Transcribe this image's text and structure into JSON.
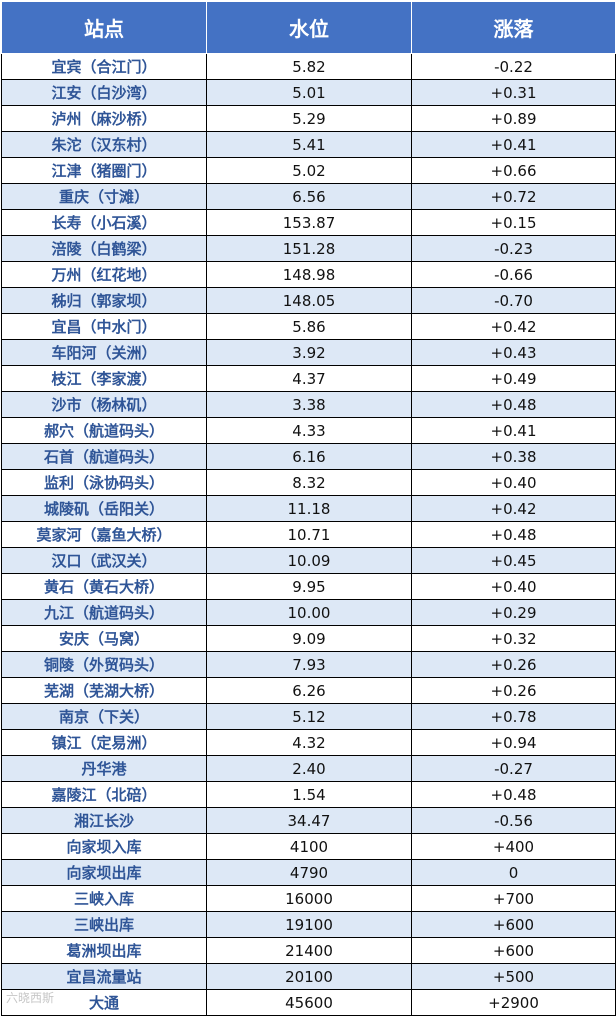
{
  "table": {
    "headers": [
      "站点",
      "水位",
      "涨落"
    ],
    "rows": [
      [
        "宜宾（合江门）",
        "5.82",
        "-0.22"
      ],
      [
        "江安（白沙湾）",
        "5.01",
        "+0.31"
      ],
      [
        "泸州（麻沙桥）",
        "5.29",
        "+0.89"
      ],
      [
        "朱沱（汉东村）",
        "5.41",
        "+0.41"
      ],
      [
        "江津（猪圈门）",
        "5.02",
        "+0.66"
      ],
      [
        "重庆（寸滩）",
        "6.56",
        "+0.72"
      ],
      [
        "长寿（小石溪）",
        "153.87",
        "+0.15"
      ],
      [
        "涪陵（白鹤梁）",
        "151.28",
        "-0.23"
      ],
      [
        "万州（红花地）",
        "148.98",
        "-0.66"
      ],
      [
        "秭归（郭家坝）",
        "148.05",
        "-0.70"
      ],
      [
        "宜昌（中水门）",
        "5.86",
        "+0.42"
      ],
      [
        "车阳河（关洲）",
        "3.92",
        "+0.43"
      ],
      [
        "枝江（李家渡）",
        "4.37",
        "+0.49"
      ],
      [
        "沙市（杨林矶）",
        "3.38",
        "+0.48"
      ],
      [
        "郝穴（航道码头）",
        "4.33",
        "+0.41"
      ],
      [
        "石首（航道码头）",
        "6.16",
        "+0.38"
      ],
      [
        "监利（泳协码头）",
        "8.32",
        "+0.40"
      ],
      [
        "城陵矶（岳阳关）",
        "11.18",
        "+0.42"
      ],
      [
        "莫家河（嘉鱼大桥）",
        "10.71",
        "+0.48"
      ],
      [
        "汉口（武汉关）",
        "10.09",
        "+0.45"
      ],
      [
        "黄石（黄石大桥）",
        "9.95",
        "+0.40"
      ],
      [
        "九江（航道码头）",
        "10.00",
        "+0.29"
      ],
      [
        "安庆（马窝）",
        "9.09",
        "+0.32"
      ],
      [
        "铜陵（外贸码头）",
        "7.93",
        "+0.26"
      ],
      [
        "芜湖（芜湖大桥）",
        "6.26",
        "+0.26"
      ],
      [
        "南京（下关）",
        "5.12",
        "+0.78"
      ],
      [
        "镇江（定易洲）",
        "4.32",
        "+0.94"
      ],
      [
        "丹华港",
        "2.40",
        "-0.27"
      ],
      [
        "嘉陵江（北碚）",
        "1.54",
        "+0.48"
      ],
      [
        "湘江长沙",
        "34.47",
        "-0.56"
      ],
      [
        "向家坝入库",
        "4100",
        "+400"
      ],
      [
        "向家坝出库",
        "4790",
        "0"
      ],
      [
        "三峡入库",
        "16000",
        "+700"
      ],
      [
        "三峡出库",
        "19100",
        "+600"
      ],
      [
        "葛洲坝出库",
        "21400",
        "+600"
      ],
      [
        "宜昌流量站",
        "20100",
        "+500"
      ],
      [
        "大通",
        "45600",
        "+2900"
      ]
    ]
  },
  "watermark": "六晓西斯"
}
